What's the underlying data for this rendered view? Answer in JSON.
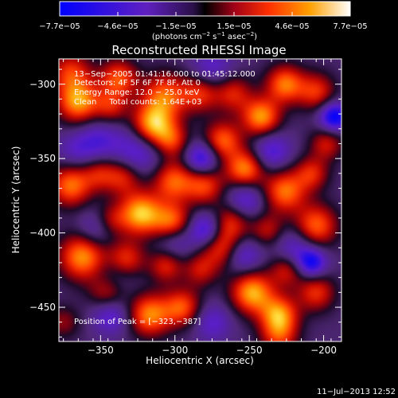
{
  "chart_data": {
    "type": "heatmap",
    "title": "Reconstructed RHESSI Image",
    "xlabel": "Heliocentric X (arcsec)",
    "ylabel": "Heliocentric Y (arcsec)",
    "xlim": [
      -378,
      -188
    ],
    "ylim": [
      -473,
      -283
    ],
    "xticks": [
      -350,
      -300,
      -250,
      -200
    ],
    "xtick_labels": [
      "−350",
      "−300",
      "−250",
      "−200"
    ],
    "yticks": [
      -300,
      -350,
      -400,
      -450
    ],
    "ytick_labels": [
      "−300",
      "−350",
      "−400",
      "−450"
    ],
    "colorbar": {
      "range": [
        -7.7e-05,
        7.7e-05
      ],
      "tick_labels": [
        "−7.7e−05",
        "−4.6e−05",
        "−1.5e−05",
        "1.5e−05",
        "4.6e−05",
        "7.7e−05"
      ],
      "units_prefix": "(photons cm",
      "units_sup1": "−2",
      "units_mid": " s",
      "units_sup2": "−1",
      "units_mid2": " asec",
      "units_sup3": "−2",
      "units_suffix": ")"
    },
    "annotations": [
      "13−Sep−2005 01:41:16.000 to 01:45:12.000",
      "Detectors: 4F 5F 6F 7F 8F, Att 0",
      "Energy Range: 12.0 − 25.0 keV",
      "Clean     Total counts: 1.64E+03"
    ],
    "peak_label": "Position of Peak = [−323,−387]",
    "peak": [
      -323,
      -387
    ],
    "sources": [
      {
        "x": -370,
        "y": -292,
        "v": 0.6,
        "s": 10
      },
      {
        "x": -338,
        "y": -296,
        "v": 0.7,
        "s": 9
      },
      {
        "x": -365,
        "y": -312,
        "v": 0.9,
        "s": 10
      },
      {
        "x": -343,
        "y": -315,
        "v": 0.5,
        "s": 8
      },
      {
        "x": -307,
        "y": -308,
        "v": 0.75,
        "s": 11
      },
      {
        "x": -283,
        "y": -306,
        "v": 0.6,
        "s": 9
      },
      {
        "x": -261,
        "y": -306,
        "v": 0.55,
        "s": 9
      },
      {
        "x": -242,
        "y": -322,
        "v": 0.9,
        "s": 9
      },
      {
        "x": -226,
        "y": -300,
        "v": 0.8,
        "s": 9
      },
      {
        "x": -205,
        "y": -305,
        "v": 0.6,
        "s": 9
      },
      {
        "x": -198,
        "y": -340,
        "v": 0.5,
        "s": 8
      },
      {
        "x": -315,
        "y": -328,
        "v": 1.0,
        "s": 10
      },
      {
        "x": -302,
        "y": -338,
        "v": 0.55,
        "s": 8
      },
      {
        "x": -268,
        "y": -338,
        "v": 0.75,
        "s": 9
      },
      {
        "x": -253,
        "y": -357,
        "v": 0.85,
        "s": 9
      },
      {
        "x": -370,
        "y": -368,
        "v": 0.8,
        "s": 10
      },
      {
        "x": -351,
        "y": -360,
        "v": 0.45,
        "s": 8
      },
      {
        "x": -335,
        "y": -362,
        "v": 0.6,
        "s": 9
      },
      {
        "x": -301,
        "y": -365,
        "v": 0.75,
        "s": 10
      },
      {
        "x": -280,
        "y": -368,
        "v": 0.65,
        "s": 9
      },
      {
        "x": -226,
        "y": -372,
        "v": 0.8,
        "s": 10
      },
      {
        "x": -208,
        "y": -360,
        "v": 0.55,
        "s": 8
      },
      {
        "x": -323,
        "y": -387,
        "v": 1.0,
        "s": 10
      },
      {
        "x": -302,
        "y": -393,
        "v": 0.8,
        "s": 9
      },
      {
        "x": -344,
        "y": -392,
        "v": 0.5,
        "s": 8
      },
      {
        "x": -262,
        "y": -392,
        "v": 0.55,
        "s": 9
      },
      {
        "x": -238,
        "y": -398,
        "v": 0.45,
        "s": 8
      },
      {
        "x": -205,
        "y": -395,
        "v": 0.75,
        "s": 10
      },
      {
        "x": -362,
        "y": -416,
        "v": 0.9,
        "s": 11
      },
      {
        "x": -333,
        "y": -418,
        "v": 0.65,
        "s": 9
      },
      {
        "x": -306,
        "y": -422,
        "v": 0.55,
        "s": 8
      },
      {
        "x": -268,
        "y": -410,
        "v": 0.7,
        "s": 10
      },
      {
        "x": -225,
        "y": -425,
        "v": 0.5,
        "s": 8
      },
      {
        "x": -345,
        "y": -440,
        "v": 0.6,
        "s": 9
      },
      {
        "x": -317,
        "y": -455,
        "v": 0.85,
        "s": 10
      },
      {
        "x": -295,
        "y": -450,
        "v": 0.7,
        "s": 9
      },
      {
        "x": -248,
        "y": -440,
        "v": 0.95,
        "s": 10
      },
      {
        "x": -230,
        "y": -455,
        "v": 0.85,
        "s": 9
      },
      {
        "x": -205,
        "y": -440,
        "v": 0.6,
        "s": 9
      },
      {
        "x": -283,
        "y": -425,
        "v": 0.45,
        "s": 8
      },
      {
        "x": -375,
        "y": -460,
        "v": 0.35,
        "s": 8
      },
      {
        "x": -230,
        "y": -470,
        "v": 0.55,
        "s": 9
      },
      {
        "x": -275,
        "y": -290,
        "v": -0.4,
        "s": 10
      },
      {
        "x": -325,
        "y": -345,
        "v": -0.55,
        "s": 12
      },
      {
        "x": -352,
        "y": -338,
        "v": -0.4,
        "s": 10
      },
      {
        "x": -282,
        "y": -350,
        "v": -0.7,
        "s": 8
      },
      {
        "x": -235,
        "y": -345,
        "v": -0.5,
        "s": 9
      },
      {
        "x": -193,
        "y": -322,
        "v": -0.85,
        "s": 7
      },
      {
        "x": -352,
        "y": -397,
        "v": -0.45,
        "s": 9
      },
      {
        "x": -253,
        "y": -378,
        "v": -0.5,
        "s": 9
      },
      {
        "x": -279,
        "y": -398,
        "v": -0.65,
        "s": 8
      },
      {
        "x": -340,
        "y": -430,
        "v": -0.35,
        "s": 10
      },
      {
        "x": -300,
        "y": -405,
        "v": -0.4,
        "s": 9
      },
      {
        "x": -255,
        "y": -415,
        "v": -0.55,
        "s": 9
      },
      {
        "x": -220,
        "y": -410,
        "v": -0.4,
        "s": 9
      },
      {
        "x": -208,
        "y": -420,
        "v": -0.75,
        "s": 7
      },
      {
        "x": -343,
        "y": -455,
        "v": -0.5,
        "s": 9
      },
      {
        "x": -275,
        "y": -460,
        "v": -0.4,
        "s": 9
      },
      {
        "x": -367,
        "y": -345,
        "v": -0.3,
        "s": 9
      }
    ]
  },
  "footer": {
    "date": "11−Jul−2013 12:52"
  }
}
